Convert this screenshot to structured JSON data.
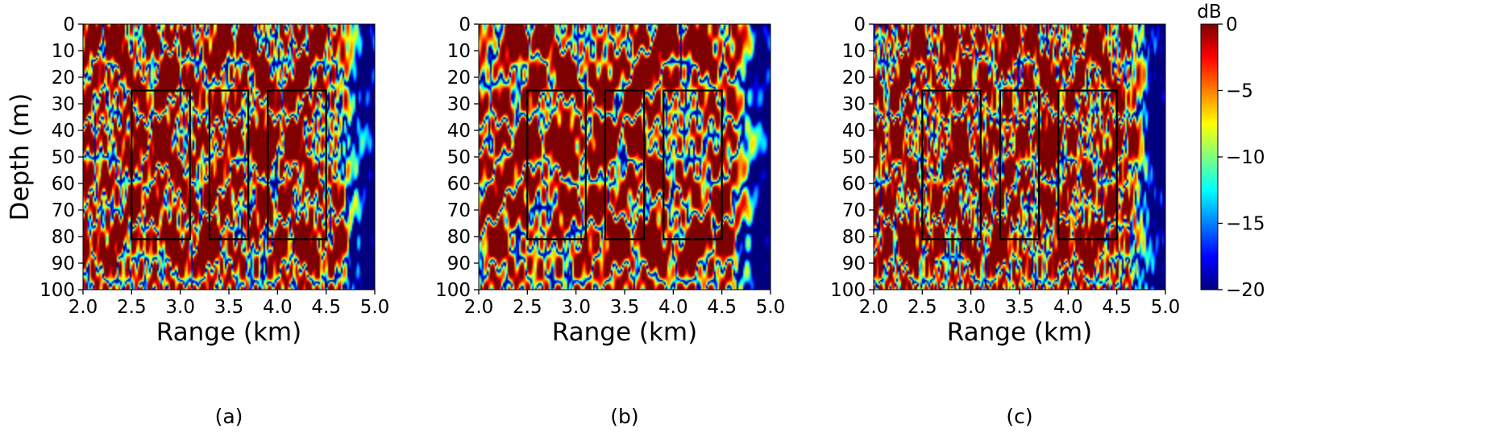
{
  "figure": {
    "colorbar": {
      "unit": "dB",
      "range": [
        -20,
        0
      ],
      "ticks": [
        0,
        -5,
        -10,
        -15,
        -20
      ],
      "tick_labels": [
        "0",
        "−5",
        "−10",
        "−15",
        "−20"
      ],
      "colormap": "jet",
      "colormap_stops": [
        "#00007f",
        "#0000ff",
        "#007fff",
        "#00ffff",
        "#7fff7f",
        "#ffff00",
        "#ff7f00",
        "#ff0000",
        "#7f0000"
      ]
    }
  },
  "chart_data": [
    {
      "type": "heatmap",
      "panel_label": "(a)",
      "xlabel": "Range (km)",
      "ylabel": "Depth (m)",
      "xlim": [
        2.0,
        5.0
      ],
      "ylim": [
        0,
        100
      ],
      "y_inverted": true,
      "xticks": [
        2.0,
        2.5,
        3.0,
        3.5,
        4.0,
        4.5,
        5.0
      ],
      "xtick_labels": [
        "2.0",
        "2.5",
        "3.0",
        "3.5",
        "4.0",
        "4.5",
        "5.0"
      ],
      "yticks": [
        0,
        10,
        20,
        30,
        40,
        50,
        60,
        70,
        80,
        90,
        100
      ],
      "ytick_labels": [
        "0",
        "10",
        "20",
        "30",
        "40",
        "50",
        "60",
        "70",
        "80",
        "90",
        "100"
      ],
      "near_field_pattern": "fine",
      "highlight_boxes": [
        {
          "x": [
            2.5,
            3.1
          ],
          "y": [
            25,
            81
          ]
        },
        {
          "x": [
            3.3,
            3.7
          ],
          "y": [
            25,
            81
          ]
        },
        {
          "x": [
            3.9,
            4.5
          ],
          "y": [
            25,
            81
          ]
        }
      ]
    },
    {
      "type": "heatmap",
      "panel_label": "(b)",
      "xlabel": "Range (km)",
      "ylabel": "",
      "xlim": [
        2.0,
        5.0
      ],
      "ylim": [
        0,
        100
      ],
      "y_inverted": true,
      "xticks": [
        2.0,
        2.5,
        3.0,
        3.5,
        4.0,
        4.5,
        5.0
      ],
      "xtick_labels": [
        "2.0",
        "2.5",
        "3.0",
        "3.5",
        "4.0",
        "4.5",
        "5.0"
      ],
      "yticks": [
        0,
        10,
        20,
        30,
        40,
        50,
        60,
        70,
        80,
        90,
        100
      ],
      "ytick_labels": [
        "0",
        "10",
        "20",
        "30",
        "40",
        "50",
        "60",
        "70",
        "80",
        "90",
        "100"
      ],
      "near_field_pattern": "smooth",
      "highlight_boxes": [
        {
          "x": [
            2.5,
            3.1
          ],
          "y": [
            25,
            81
          ]
        },
        {
          "x": [
            3.3,
            3.7
          ],
          "y": [
            25,
            81
          ]
        },
        {
          "x": [
            3.9,
            4.5
          ],
          "y": [
            25,
            81
          ]
        }
      ]
    },
    {
      "type": "heatmap",
      "panel_label": "(c)",
      "xlabel": "Range (km)",
      "ylabel": "",
      "xlim": [
        2.0,
        5.0
      ],
      "ylim": [
        0,
        100
      ],
      "y_inverted": true,
      "xticks": [
        2.0,
        2.5,
        3.0,
        3.5,
        4.0,
        4.5,
        5.0
      ],
      "xtick_labels": [
        "2.0",
        "2.5",
        "3.0",
        "3.5",
        "4.0",
        "4.5",
        "5.0"
      ],
      "yticks": [
        0,
        10,
        20,
        30,
        40,
        50,
        60,
        70,
        80,
        90,
        100
      ],
      "ytick_labels": [
        "0",
        "10",
        "20",
        "30",
        "40",
        "50",
        "60",
        "70",
        "80",
        "90",
        "100"
      ],
      "near_field_pattern": "finest",
      "highlight_boxes": [
        {
          "x": [
            2.5,
            3.1
          ],
          "y": [
            25,
            81
          ]
        },
        {
          "x": [
            3.3,
            3.7
          ],
          "y": [
            25,
            81
          ]
        },
        {
          "x": [
            3.9,
            4.5
          ],
          "y": [
            25,
            81
          ]
        }
      ]
    }
  ]
}
